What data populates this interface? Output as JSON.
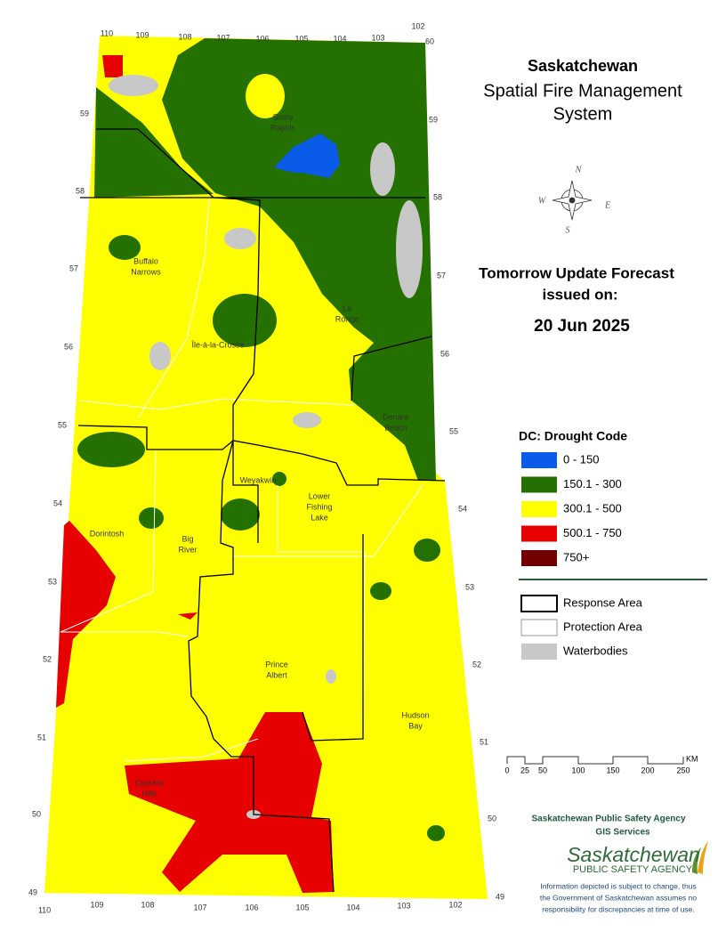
{
  "header": {
    "lines": [
      "Saskatchewan",
      "Spatial Fire Management",
      "System"
    ]
  },
  "forecast": {
    "lines": [
      "Tomorrow Update Forecast",
      "issued on:"
    ],
    "date": "20 Jun 2025"
  },
  "legend": {
    "title": "DC: Drought Code",
    "classes": [
      {
        "label": "0 - 150",
        "color": "#0a5ce8"
      },
      {
        "label": "150.1 - 300",
        "color": "#247000"
      },
      {
        "label": "300.1 - 500",
        "color": "#ffff00"
      },
      {
        "label": "500.1 - 750",
        "color": "#e60000"
      },
      {
        "label": "750+",
        "color": "#730000"
      }
    ],
    "layers": [
      "Response Area",
      "Protection Area",
      "Waterbodies"
    ]
  },
  "scale": {
    "labels": [
      "0",
      "25",
      "50",
      "100",
      "150",
      "200",
      "250"
    ],
    "unit": "KM"
  },
  "map": {
    "places": [
      [
        "Stony",
        "Rapids"
      ],
      [
        "Buffalo",
        "Narrows"
      ],
      [
        "La",
        "Ronge"
      ],
      [
        "Île-à-la-Crosse"
      ],
      [
        "Denare",
        "Beach"
      ],
      [
        "Weyakwin"
      ],
      [
        "Lower",
        "Fishing",
        "Lake"
      ],
      [
        "Dorintosh"
      ],
      [
        "Big",
        "River"
      ],
      [
        "Prince",
        "Albert"
      ],
      [
        "Hudson",
        "Bay"
      ],
      [
        "Cypress",
        "Hills"
      ]
    ],
    "lon_top": [
      "110",
      "109",
      "108",
      "107",
      "106",
      "105",
      "104",
      "103",
      "102"
    ],
    "lon_bottom": [
      "110",
      "109",
      "108",
      "107",
      "106",
      "105",
      "104",
      "103",
      "102"
    ],
    "lat_left": [
      "59",
      "58",
      "57",
      "56",
      "55",
      "54",
      "53",
      "52",
      "51",
      "50",
      "49"
    ],
    "lat_right": [
      "60",
      "59",
      "58",
      "57",
      "56",
      "55",
      "54",
      "53",
      "52",
      "51",
      "50",
      "49"
    ],
    "compass": [
      "N",
      "E",
      "W",
      "S"
    ]
  },
  "credits": {
    "agency": "Saskatchewan Public Safety Agency",
    "unit": "GIS  Services",
    "logo": "Saskatchewan",
    "logo_sub": "PUBLIC SAFETY AGENCY",
    "disclaimer": [
      "Information depicted is subject to change, thus",
      "the Government of Saskatchewan assumes no",
      "responsibility for discrepancies at time of use."
    ]
  }
}
